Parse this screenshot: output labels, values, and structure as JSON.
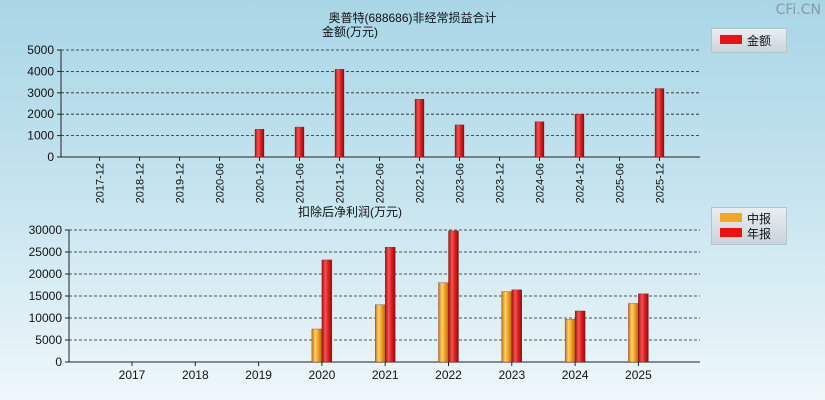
{
  "page": {
    "title": "奥普特(688686)非经常损益合计",
    "watermark": "CFi.CN"
  },
  "legend_top": [
    {
      "label": "金额",
      "color": "#ee1111"
    }
  ],
  "legend_bottom": [
    {
      "label": "中报",
      "color": "#f5a623"
    },
    {
      "label": "年报",
      "color": "#ee1111"
    }
  ],
  "chart_data": [
    {
      "type": "bar",
      "title": "金额(万元)",
      "categories": [
        "2017-12",
        "2018-12",
        "2019-12",
        "2020-06",
        "2020-12",
        "2021-06",
        "2021-12",
        "2022-06",
        "2022-12",
        "2023-06",
        "2023-12",
        "2024-06",
        "2024-12",
        "2025-06",
        "2025-12"
      ],
      "series": [
        {
          "name": "金额",
          "values": [
            0,
            0,
            0,
            0,
            1300,
            1400,
            4100,
            0,
            2700,
            1500,
            0,
            1650,
            2000,
            0,
            3200
          ]
        }
      ],
      "yticks": [
        "0",
        "1000",
        "2000",
        "3000",
        "4000",
        "5000"
      ],
      "ylim": [
        0,
        5000
      ],
      "grid": true
    },
    {
      "type": "bar",
      "title": "扣除后净利润(万元)",
      "categories": [
        "2017",
        "2018",
        "2019",
        "2020",
        "2021",
        "2022",
        "2023",
        "2024",
        "2025"
      ],
      "series": [
        {
          "name": "中报",
          "values": [
            0,
            0,
            0,
            7500,
            13000,
            18000,
            16000,
            9700,
            13300
          ]
        },
        {
          "name": "年报",
          "values": [
            0,
            0,
            0,
            23200,
            26100,
            29800,
            16400,
            11600,
            15500
          ]
        }
      ],
      "yticks": [
        "0",
        "5000",
        "10000",
        "15000",
        "20000",
        "25000",
        "30000"
      ],
      "ylim": [
        0,
        30000
      ],
      "grid": true
    }
  ]
}
